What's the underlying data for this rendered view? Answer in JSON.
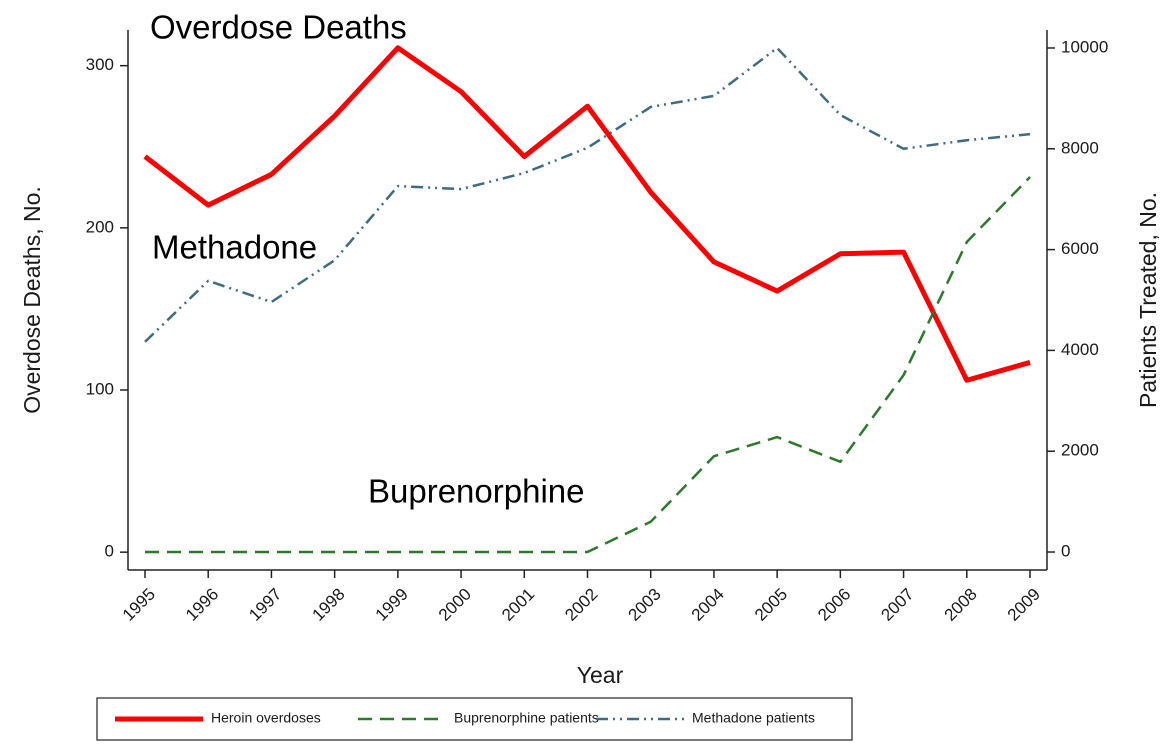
{
  "chart_data": {
    "type": "line",
    "annotations": [
      "Overdose Deaths",
      "Methadone",
      "Buprenorphine"
    ],
    "x_label": "Year",
    "y_label": "Overdose Deaths, No.",
    "y2_label": "Patients Treated, No.",
    "categories": [
      "1995",
      "1996",
      "1997",
      "1998",
      "1999",
      "2000",
      "2001",
      "2002",
      "2003",
      "2004",
      "2005",
      "2006",
      "2007",
      "2008",
      "2009"
    ],
    "series": [
      {
        "name": "Heroin overdoses",
        "color": "#ff0000",
        "dash": "solid",
        "axis": "y",
        "values": [
          244,
          214,
          233,
          269,
          311,
          284,
          244,
          275,
          222,
          179,
          161,
          184,
          185,
          106,
          117
        ]
      },
      {
        "name": "Buprenorphine patients",
        "color": "#2a7a2a",
        "dash": "dash",
        "axis": "y2",
        "values": [
          0,
          0,
          0,
          0,
          0,
          0,
          0,
          0,
          600,
          1900,
          2280,
          1790,
          3510,
          6150,
          7440
        ]
      },
      {
        "name": "Methadone patients",
        "color": "#3d6b80",
        "dash": "dashdotdot",
        "axis": "y2",
        "values": [
          4170,
          5380,
          4960,
          5790,
          7260,
          7200,
          7520,
          8020,
          8830,
          9050,
          10000,
          8670,
          8000,
          8170,
          8290
        ]
      }
    ],
    "ylim": [
      -11,
      322
    ],
    "yticks": [
      0,
      100,
      200,
      300
    ],
    "y2lim": [
      -357,
      10357
    ],
    "y2ticks": [
      0,
      2000,
      4000,
      6000,
      8000,
      10000
    ],
    "grid": false
  }
}
